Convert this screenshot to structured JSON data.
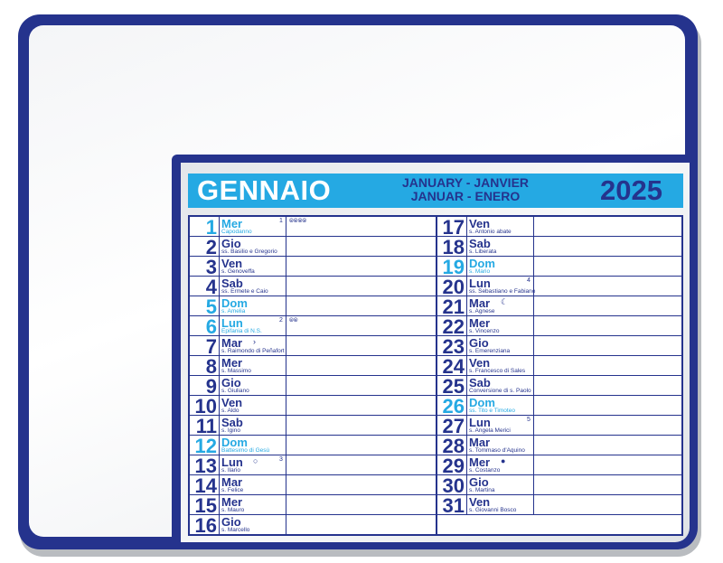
{
  "calendar": {
    "month_it": "GENNAIO",
    "month_intl_line1": "JANUARY - JANVIER",
    "month_intl_line2": "JANUAR - ENERO",
    "year": "2025",
    "colors": {
      "navy": "#25338d",
      "sky": "#25a9e3"
    },
    "left_days": [
      {
        "num": "1",
        "name": "Mer",
        "saint": "Capodanno",
        "sunday": true,
        "week": "1",
        "phase": "⦾⦾⦾⦾"
      },
      {
        "num": "2",
        "name": "Gio",
        "saint": "ss. Basilio e Gregorio"
      },
      {
        "num": "3",
        "name": "Ven",
        "saint": "s. Genoveffa"
      },
      {
        "num": "4",
        "name": "Sab",
        "saint": "ss. Ermete e Caio"
      },
      {
        "num": "5",
        "name": "Dom",
        "saint": "s. Amelia",
        "sunday": true
      },
      {
        "num": "6",
        "name": "Lun",
        "saint": "Epifania di N.S.",
        "sunday": true,
        "week": "2",
        "phase": "⦾⦾"
      },
      {
        "num": "7",
        "name": "Mar",
        "saint": "s. Raimondo di Peñafort",
        "moon": "›"
      },
      {
        "num": "8",
        "name": "Mer",
        "saint": "s. Massimo"
      },
      {
        "num": "9",
        "name": "Gio",
        "saint": "s. Giuliano"
      },
      {
        "num": "10",
        "name": "Ven",
        "saint": "s. Aldo"
      },
      {
        "num": "11",
        "name": "Sab",
        "saint": "s. Igino"
      },
      {
        "num": "12",
        "name": "Dom",
        "saint": "Battesimo di Gesù",
        "sunday": true
      },
      {
        "num": "13",
        "name": "Lun",
        "saint": "s. Ilario",
        "week": "3",
        "moon": "○"
      },
      {
        "num": "14",
        "name": "Mar",
        "saint": "s. Felice"
      },
      {
        "num": "15",
        "name": "Mer",
        "saint": "s. Mauro"
      },
      {
        "num": "16",
        "name": "Gio",
        "saint": "s. Marcello"
      }
    ],
    "right_days": [
      {
        "num": "17",
        "name": "Ven",
        "saint": "s. Antonio abate"
      },
      {
        "num": "18",
        "name": "Sab",
        "saint": "s. Liberata"
      },
      {
        "num": "19",
        "name": "Dom",
        "saint": "s. Mario",
        "sunday": true
      },
      {
        "num": "20",
        "name": "Lun",
        "saint": "ss. Sebastiano e Fabiano",
        "week": "4"
      },
      {
        "num": "21",
        "name": "Mar",
        "saint": "s. Agnese",
        "moon": "☾"
      },
      {
        "num": "22",
        "name": "Mer",
        "saint": "s. Vincenzo"
      },
      {
        "num": "23",
        "name": "Gio",
        "saint": "s. Emerenziana"
      },
      {
        "num": "24",
        "name": "Ven",
        "saint": "s. Francesco di Sales"
      },
      {
        "num": "25",
        "name": "Sab",
        "saint": "Conversione di s. Paolo"
      },
      {
        "num": "26",
        "name": "Dom",
        "saint": "ss. Tito e Timoteo",
        "sunday": true
      },
      {
        "num": "27",
        "name": "Lun",
        "saint": "s. Angela Merici",
        "week": "5"
      },
      {
        "num": "28",
        "name": "Mar",
        "saint": "s. Tommaso d'Aquino"
      },
      {
        "num": "29",
        "name": "Mer",
        "saint": "s. Costanzo",
        "moon": "●"
      },
      {
        "num": "30",
        "name": "Gio",
        "saint": "s. Martina"
      },
      {
        "num": "31",
        "name": "Ven",
        "saint": "s. Giovanni Bosco"
      }
    ]
  }
}
